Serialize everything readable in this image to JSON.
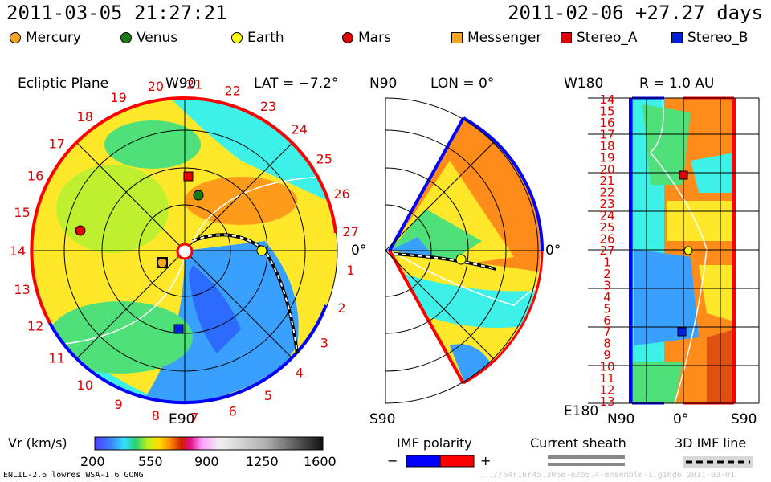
{
  "header": {
    "left_datetime": "2011-03-05 21:27:21",
    "right_datetime": "2011-02-06 +27.27 days"
  },
  "legend": [
    {
      "label": "Mercury",
      "color": "#f5a623",
      "shape": "circle"
    },
    {
      "label": "Venus",
      "color": "#1a7a1a",
      "shape": "circle"
    },
    {
      "label": "Earth",
      "color": "#ffff00",
      "shape": "circle"
    },
    {
      "label": "Mars",
      "color": "#e00000",
      "shape": "circle"
    },
    {
      "label": "Messenger",
      "color": "#f5a623",
      "shape": "square"
    },
    {
      "label": "Stereo_A",
      "color": "#e00000",
      "shape": "square"
    },
    {
      "label": "Stereo_B",
      "color": "#0020e0",
      "shape": "square"
    }
  ],
  "panels": {
    "ecliptic": {
      "title": "Ecliptic Plane",
      "top_label": "W90",
      "bottom_label": "E90",
      "right_label": "0°",
      "lat_label": "LAT = −7.2°",
      "day_ticks": [
        "20",
        "21",
        "22",
        "23",
        "24",
        "25",
        "26",
        "27",
        "1",
        "2",
        "3",
        "4",
        "5",
        "6",
        "7",
        "8",
        "9",
        "10",
        "11",
        "12",
        "13",
        "14",
        "15",
        "16",
        "17",
        "18",
        "19"
      ]
    },
    "meridional": {
      "top_label": "N90",
      "bottom_label": "S90",
      "right_label": "0°",
      "lon_label": "LON = 0°"
    },
    "radial": {
      "top_label": "W180",
      "bottom_label": "E180",
      "r_label": "R = 1.0 AU",
      "x_labels": [
        "N90",
        "0°",
        "S90"
      ],
      "day_ticks": [
        "14",
        "15",
        "16",
        "17",
        "18",
        "19",
        "20",
        "21",
        "22",
        "23",
        "24",
        "25",
        "26",
        "27",
        "1",
        "2",
        "3",
        "4",
        "5",
        "6",
        "7",
        "8",
        "9",
        "10",
        "11",
        "12",
        "13"
      ]
    }
  },
  "colorbar": {
    "label": "Vr (km/s)",
    "ticks": [
      "200",
      "550",
      "900",
      "1250",
      "1600"
    ]
  },
  "imf": {
    "title": "IMF polarity",
    "minus": "−",
    "plus": "+",
    "neg_color": "#0000ff",
    "pos_color": "#ff0000"
  },
  "current_sheath": {
    "title": "Current sheath"
  },
  "imf_line": {
    "title": "3D IMF line"
  },
  "footer": {
    "model": "ENLIL-2.6 lowres WSA-1.6 GONG",
    "run_id": "...//64r16r45.2068-e2b5.4-ensemble-1.g16d6    2011-03-01"
  }
}
